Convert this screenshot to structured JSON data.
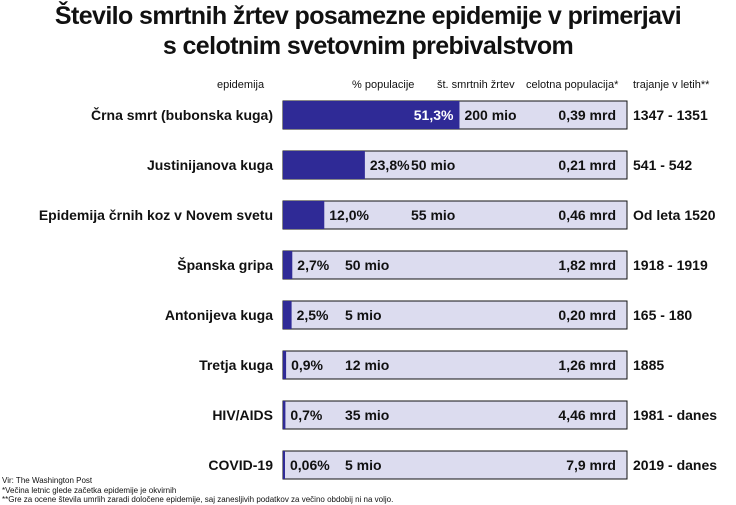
{
  "title_line1": "Število smrtnih žrtev posamezne epidemije v primerjavi",
  "title_line2": "s celotnim svetovnim prebivalstvom",
  "headers": {
    "epidemic": "epidemija",
    "percent": "% populacije",
    "deaths": "št. smrtnih žrtev",
    "population": "celotna populacija*",
    "duration": "trajanje v letih**"
  },
  "colors": {
    "bar_fill": "#2f2a96",
    "bar_bg": "#dcdcef",
    "border": "#111111"
  },
  "chart_data": {
    "type": "bar",
    "orientation": "horizontal",
    "stacked_on_background": true,
    "xlim": [
      0,
      100
    ],
    "categories": [
      "Črna smrt (bubonska kuga)",
      "Justinijanova kuga",
      "Epidemija črnih koz v Novem svetu",
      "Španska gripa",
      "Antonijeva kuga",
      "Tretja kuga",
      "HIV/AIDS",
      "COVID-19"
    ],
    "values": [
      51.3,
      23.8,
      12.0,
      2.7,
      2.5,
      0.9,
      0.7,
      0.06
    ],
    "percent_labels": [
      "51,3%",
      "23,8%",
      "12,0%",
      "2,7%",
      "2,5%",
      "0,9%",
      "0,7%",
      "0,06%"
    ],
    "deaths_labels": [
      "200 mio",
      "50 mio",
      "55 mio",
      "50 mio",
      "5 mio",
      "12 mio",
      "35 mio",
      "5 mio"
    ],
    "population_labels": [
      "0,39 mrd",
      "0,21 mrd",
      "0,46 mrd",
      "1,82 mrd",
      "0,20 mrd",
      "1,26 mrd",
      "4,46 mrd",
      "7,9 mrd"
    ],
    "duration_labels": [
      "1347 - 1351",
      "541 - 542",
      "Od leta 1520",
      "1918 - 1919",
      "165 - 180",
      "1885",
      "1981 - danes",
      "2019 - danes"
    ]
  },
  "source": "Vir: The Washington Post",
  "footnote1": "*Večina letnic glede začetka epidemije je okvirnih",
  "footnote2": "**Gre za ocene števila umrlih zaradi določene epidemije, saj zanesljivih podatkov za večino obdobij ni na voljo."
}
